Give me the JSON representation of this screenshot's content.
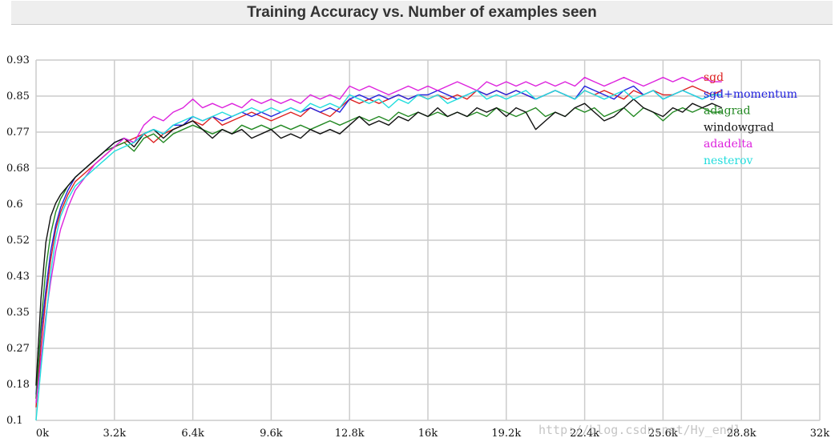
{
  "header": {
    "title": "Training Accuracy vs. Number of examples seen"
  },
  "watermark": "http://blog.csdn.net/Hy_endl",
  "chart_data": {
    "type": "line",
    "title": "Training Accuracy vs. Number of examples seen",
    "xlabel": "",
    "ylabel": "",
    "xlim": [
      0,
      32000
    ],
    "ylim": [
      0.1,
      0.93
    ],
    "grid": true,
    "legend_position": "top-right",
    "x_ticks": [
      "0k",
      "3.2k",
      "6.4k",
      "9.6k",
      "12.8k",
      "16k",
      "19.2k",
      "22.4k",
      "25.6k",
      "28.8k",
      "32k"
    ],
    "y_ticks": [
      "0.1",
      "0.18",
      "0.27",
      "0.35",
      "0.43",
      "0.52",
      "0.6",
      "0.68",
      "0.77",
      "0.85",
      "0.93"
    ],
    "x": [
      0,
      200,
      400,
      600,
      800,
      1000,
      1300,
      1600,
      2000,
      2400,
      2800,
      3200,
      3600,
      4000,
      4400,
      4800,
      5200,
      5600,
      6000,
      6400,
      6800,
      7200,
      7600,
      8000,
      8400,
      8800,
      9200,
      9600,
      10000,
      10400,
      10800,
      11200,
      11600,
      12000,
      12400,
      12800,
      13200,
      13600,
      14000,
      14400,
      14800,
      15200,
      15600,
      16000,
      16400,
      16800,
      17200,
      17600,
      18000,
      18400,
      18800,
      19200,
      19600,
      20000,
      20400,
      20800,
      21200,
      21600,
      22000,
      22400,
      22800,
      23200,
      23600,
      24000,
      24400,
      24800,
      25200,
      25600,
      26000,
      26400,
      26800,
      27200,
      27600,
      28000
    ],
    "series": [
      {
        "name": "sgd",
        "color": "#dd2222",
        "values": [
          0.13,
          0.27,
          0.38,
          0.47,
          0.54,
          0.58,
          0.62,
          0.65,
          0.67,
          0.69,
          0.71,
          0.73,
          0.74,
          0.75,
          0.76,
          0.74,
          0.76,
          0.77,
          0.78,
          0.79,
          0.78,
          0.8,
          0.78,
          0.79,
          0.8,
          0.81,
          0.8,
          0.79,
          0.8,
          0.81,
          0.8,
          0.82,
          0.81,
          0.8,
          0.82,
          0.84,
          0.83,
          0.84,
          0.83,
          0.84,
          0.85,
          0.84,
          0.85,
          0.84,
          0.85,
          0.84,
          0.85,
          0.84,
          0.86,
          0.85,
          0.86,
          0.85,
          0.86,
          0.85,
          0.84,
          0.85,
          0.86,
          0.85,
          0.84,
          0.86,
          0.85,
          0.86,
          0.85,
          0.84,
          0.86,
          0.85,
          0.86,
          0.85,
          0.85,
          0.86,
          0.87,
          0.86,
          0.85,
          0.86
        ]
      },
      {
        "name": "sgd+momentum",
        "color": "#2222dd",
        "values": [
          0.16,
          0.3,
          0.4,
          0.49,
          0.55,
          0.59,
          0.63,
          0.66,
          0.68,
          0.7,
          0.72,
          0.74,
          0.75,
          0.74,
          0.76,
          0.77,
          0.76,
          0.78,
          0.78,
          0.8,
          0.79,
          0.8,
          0.79,
          0.8,
          0.81,
          0.8,
          0.81,
          0.8,
          0.81,
          0.82,
          0.81,
          0.82,
          0.81,
          0.82,
          0.81,
          0.84,
          0.85,
          0.84,
          0.85,
          0.84,
          0.85,
          0.84,
          0.85,
          0.85,
          0.86,
          0.85,
          0.84,
          0.85,
          0.86,
          0.85,
          0.86,
          0.85,
          0.86,
          0.85,
          0.84,
          0.85,
          0.86,
          0.85,
          0.84,
          0.87,
          0.86,
          0.85,
          0.84,
          0.86,
          0.87,
          0.85,
          0.86,
          0.84,
          0.85,
          0.86,
          0.85,
          0.84,
          0.85,
          0.85
        ]
      },
      {
        "name": "adagrad",
        "color": "#228822",
        "values": [
          0.15,
          0.32,
          0.45,
          0.53,
          0.58,
          0.61,
          0.64,
          0.66,
          0.68,
          0.7,
          0.72,
          0.73,
          0.74,
          0.72,
          0.75,
          0.76,
          0.74,
          0.76,
          0.77,
          0.78,
          0.77,
          0.76,
          0.77,
          0.76,
          0.78,
          0.77,
          0.78,
          0.77,
          0.78,
          0.77,
          0.78,
          0.77,
          0.78,
          0.79,
          0.78,
          0.79,
          0.8,
          0.79,
          0.8,
          0.79,
          0.81,
          0.8,
          0.81,
          0.8,
          0.81,
          0.8,
          0.81,
          0.8,
          0.81,
          0.8,
          0.82,
          0.81,
          0.8,
          0.81,
          0.82,
          0.8,
          0.81,
          0.8,
          0.82,
          0.81,
          0.82,
          0.8,
          0.81,
          0.82,
          0.8,
          0.82,
          0.81,
          0.79,
          0.81,
          0.82,
          0.81,
          0.82,
          0.81,
          0.81
        ]
      },
      {
        "name": "windowgrad",
        "color": "#111111",
        "values": [
          0.18,
          0.38,
          0.51,
          0.57,
          0.6,
          0.62,
          0.64,
          0.66,
          0.68,
          0.7,
          0.72,
          0.74,
          0.75,
          0.73,
          0.76,
          0.77,
          0.75,
          0.77,
          0.78,
          0.79,
          0.77,
          0.75,
          0.77,
          0.76,
          0.77,
          0.75,
          0.76,
          0.77,
          0.75,
          0.76,
          0.75,
          0.77,
          0.76,
          0.77,
          0.76,
          0.78,
          0.8,
          0.78,
          0.79,
          0.78,
          0.8,
          0.79,
          0.81,
          0.8,
          0.82,
          0.8,
          0.81,
          0.8,
          0.82,
          0.81,
          0.82,
          0.8,
          0.82,
          0.81,
          0.77,
          0.79,
          0.81,
          0.8,
          0.82,
          0.83,
          0.81,
          0.79,
          0.8,
          0.82,
          0.84,
          0.82,
          0.81,
          0.8,
          0.82,
          0.81,
          0.83,
          0.82,
          0.83,
          0.82
        ]
      },
      {
        "name": "adadelta",
        "color": "#dd22dd",
        "values": [
          0.14,
          0.24,
          0.34,
          0.42,
          0.49,
          0.54,
          0.59,
          0.63,
          0.66,
          0.69,
          0.71,
          0.73,
          0.75,
          0.74,
          0.78,
          0.8,
          0.79,
          0.81,
          0.82,
          0.84,
          0.82,
          0.83,
          0.82,
          0.83,
          0.82,
          0.84,
          0.83,
          0.84,
          0.83,
          0.84,
          0.83,
          0.85,
          0.84,
          0.85,
          0.84,
          0.87,
          0.86,
          0.87,
          0.86,
          0.85,
          0.86,
          0.87,
          0.86,
          0.87,
          0.86,
          0.87,
          0.88,
          0.87,
          0.86,
          0.88,
          0.87,
          0.88,
          0.87,
          0.88,
          0.87,
          0.88,
          0.87,
          0.88,
          0.87,
          0.89,
          0.88,
          0.87,
          0.88,
          0.89,
          0.88,
          0.87,
          0.88,
          0.89,
          0.88,
          0.89,
          0.88,
          0.89,
          0.88,
          0.88
        ]
      },
      {
        "name": "nesterov",
        "color": "#22dddd",
        "values": [
          0.1,
          0.22,
          0.33,
          0.44,
          0.52,
          0.57,
          0.61,
          0.64,
          0.66,
          0.68,
          0.7,
          0.72,
          0.73,
          0.74,
          0.76,
          0.77,
          0.76,
          0.78,
          0.79,
          0.8,
          0.79,
          0.8,
          0.81,
          0.8,
          0.81,
          0.82,
          0.81,
          0.82,
          0.81,
          0.82,
          0.81,
          0.83,
          0.82,
          0.83,
          0.82,
          0.85,
          0.84,
          0.83,
          0.84,
          0.82,
          0.84,
          0.83,
          0.85,
          0.84,
          0.85,
          0.83,
          0.84,
          0.85,
          0.86,
          0.84,
          0.85,
          0.84,
          0.85,
          0.86,
          0.84,
          0.85,
          0.86,
          0.85,
          0.84,
          0.86,
          0.85,
          0.84,
          0.85,
          0.86,
          0.84,
          0.85,
          0.86,
          0.84,
          0.85,
          0.86,
          0.85,
          0.84,
          0.85,
          0.85
        ]
      }
    ]
  }
}
